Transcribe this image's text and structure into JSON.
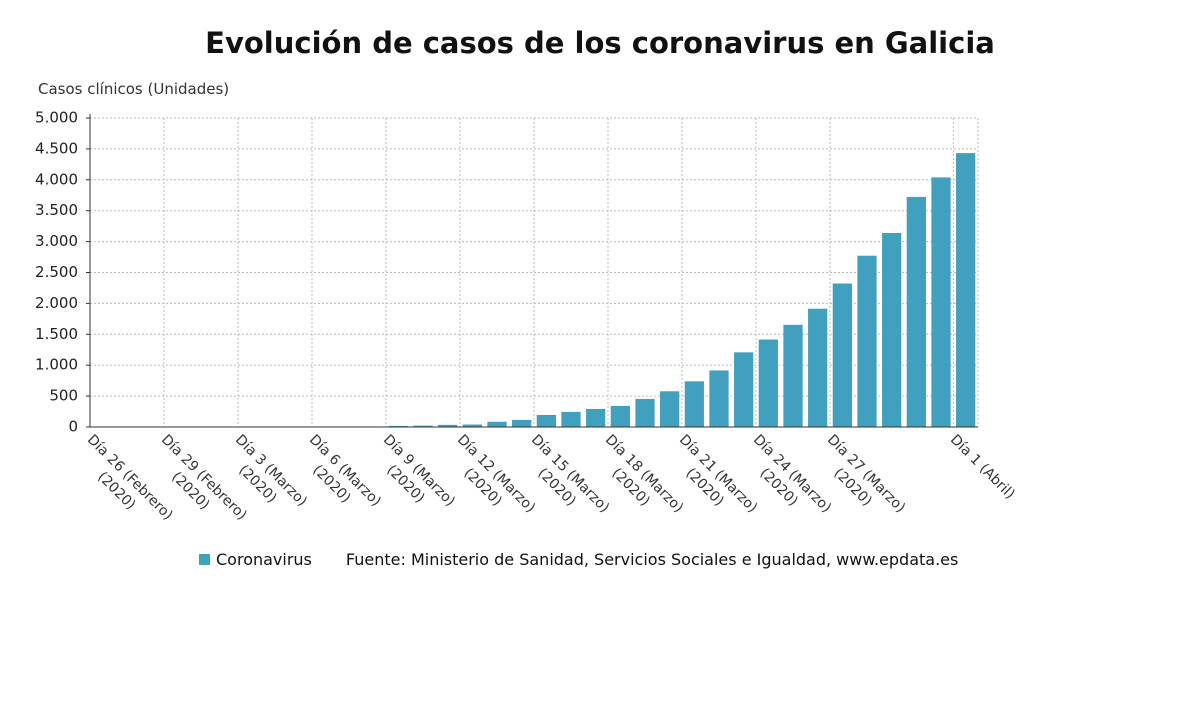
{
  "chart_data": {
    "type": "bar",
    "title": "Evolución de casos de los coronavirus en Galicia",
    "y_axis_label": "Casos clínicos (Unidades)",
    "source": "Fuente: Ministerio de Sanidad, Servicios Sociales e Igualdad, www.epdata.es",
    "categories": [
      "Día 26 (Febrero)\n(2020)",
      null,
      null,
      "Día 29 (Febrero)\n(2020)",
      null,
      null,
      "Día 3 (Marzo)\n(2020)",
      null,
      null,
      "Día 6 (Marzo)\n(2020)",
      null,
      null,
      "Día 9 (Marzo)\n(2020)",
      null,
      null,
      "Día 12 (Marzo)\n(2020)",
      null,
      null,
      "Día 15 (Marzo)\n(2020)",
      null,
      null,
      "Día 18 (Marzo)\n(2020)",
      null,
      null,
      "Día 21 (Marzo)\n(2020)",
      null,
      null,
      "Día 24 (Marzo)\n(2020)",
      null,
      null,
      "Día 27 (Marzo)\n(2020)",
      null,
      null,
      null,
      null,
      "Día 1 (Abril)"
    ],
    "series": [
      {
        "name": "Coronavirus",
        "color": "#41a0bd",
        "values": [
          0,
          0,
          0,
          0,
          0,
          0,
          0,
          1,
          2,
          3,
          6,
          6,
          18,
          22,
          35,
          40,
          85,
          115,
          195,
          245,
          292,
          341,
          454,
          578,
          739,
          915,
          1208,
          1415,
          1653,
          1914,
          2322,
          2772,
          3139,
          3723,
          4039,
          4432
        ]
      }
    ],
    "ylim": [
      0,
      5000
    ],
    "yticks": [
      0,
      500,
      {
        "value": 1000,
        "label": "1.000"
      },
      {
        "value": 1500,
        "label": "1.500"
      },
      {
        "value": 2000,
        "label": "2.000"
      },
      {
        "value": 2500,
        "label": "2.500"
      },
      {
        "value": 3000,
        "label": "3.000"
      },
      {
        "value": 3500,
        "label": "3.500"
      },
      {
        "value": 4000,
        "label": "4.000"
      },
      {
        "value": 4500,
        "label": "4.500"
      },
      {
        "value": 5000,
        "label": "5.000"
      }
    ],
    "grid": true
  }
}
